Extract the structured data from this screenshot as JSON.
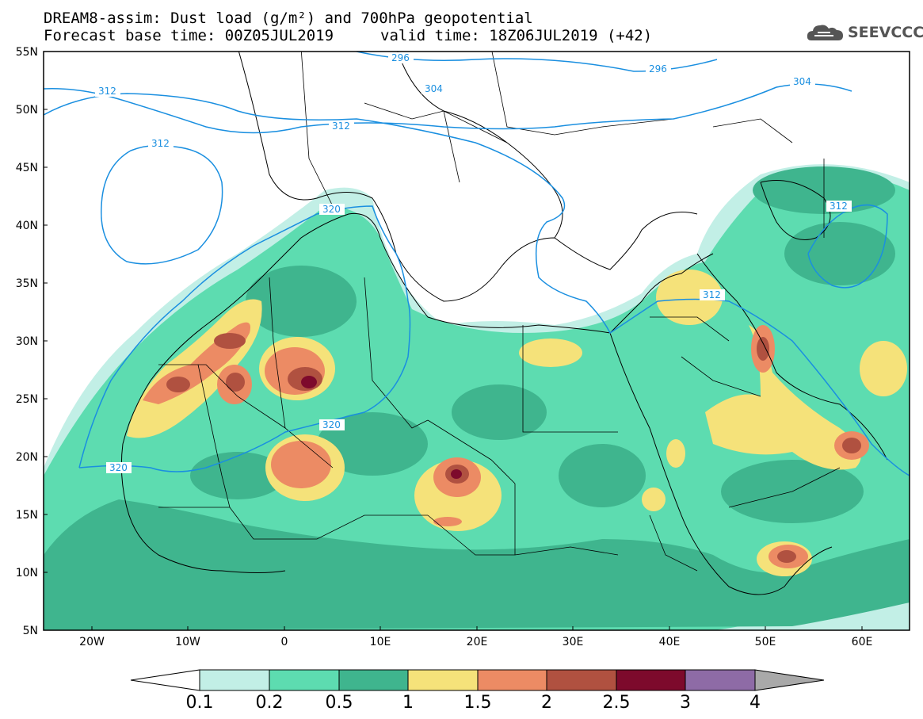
{
  "header": {
    "line1": "DREAM8-assim: Dust load (g/m²) and 700hPa geopotential",
    "line2_left": "Forecast base time: 00Z05JUL2019",
    "line2_right": "valid time: 18Z06JUL2019 (+42)"
  },
  "logo": {
    "text": "SEEVCCC",
    "icon": "cloud-logo-icon"
  },
  "map": {
    "lat_labels": [
      "55N",
      "50N",
      "45N",
      "40N",
      "35N",
      "30N",
      "25N",
      "20N",
      "15N",
      "10N",
      "5N"
    ],
    "lon_labels": [
      "20W",
      "10W",
      "0",
      "10E",
      "20E",
      "30E",
      "40E",
      "50E",
      "60E"
    ],
    "contour_labels": [
      "312",
      "304",
      "296",
      "312",
      "304",
      "312",
      "320",
      "320",
      "320",
      "312",
      "312",
      "296"
    ]
  },
  "colorbar": {
    "labels": [
      "0.1",
      "0.2",
      "0.5",
      "1",
      "1.5",
      "2",
      "2.5",
      "3",
      "4"
    ],
    "colors": [
      "#ffffff",
      "#c2efe6",
      "#5ddcb0",
      "#3fb58e",
      "#f5e27a",
      "#ec8b64",
      "#b05140",
      "#7d0a2c",
      "#8e6ba6",
      "#a9a9a9"
    ]
  }
}
